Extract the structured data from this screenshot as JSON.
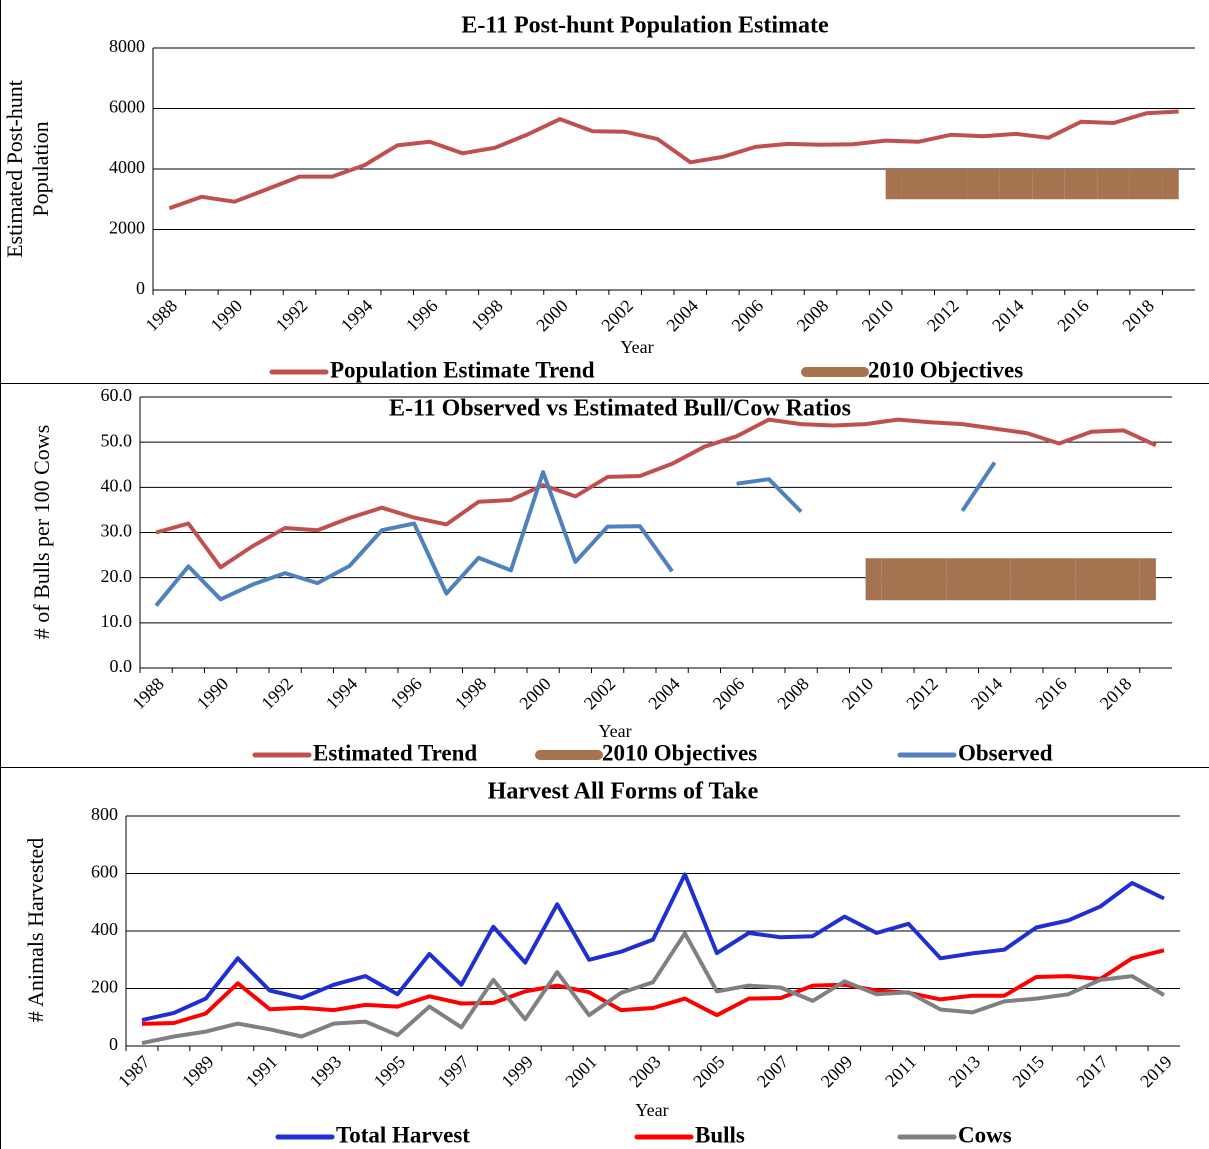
{
  "chart_data": [
    {
      "type": "line",
      "title": "E-11 Post-hunt Population Estimate",
      "xlabel": "Year",
      "ylabel": [
        "Estimated Post-hunt",
        "Population"
      ],
      "categories": [
        "1988",
        null,
        "1990",
        null,
        "1992",
        null,
        "1994",
        null,
        "1996",
        null,
        "1998",
        null,
        "2000",
        null,
        "2002",
        null,
        "2004",
        null,
        "2006",
        null,
        "2008",
        null,
        "2010",
        null,
        "2012",
        null,
        "2014",
        null,
        "2016",
        null,
        "2018",
        null
      ],
      "series": [
        {
          "name": "Population Estimate Trend",
          "color": "#c0504d",
          "values": [
            2700,
            3080,
            2920,
            3330,
            3750,
            3750,
            4130,
            4780,
            4900,
            4520,
            4700,
            5140,
            5650,
            5250,
            5230,
            4990,
            4220,
            4400,
            4730,
            4830,
            4800,
            4820,
            4940,
            4900,
            5130,
            5080,
            5160,
            5030,
            5560,
            5520,
            5840,
            5900
          ]
        },
        {
          "name": "2010 Objectives",
          "type": "band",
          "color": "#a57350",
          "values": [
            null,
            null,
            null,
            null,
            null,
            null,
            null,
            null,
            null,
            null,
            null,
            null,
            null,
            null,
            null,
            null,
            null,
            null,
            null,
            null,
            null,
            null,
            4000,
            4000,
            4000,
            4000,
            4000,
            4000,
            4000,
            4000,
            4000,
            4000
          ],
          "low": [
            null,
            null,
            null,
            null,
            null,
            null,
            null,
            null,
            null,
            null,
            null,
            null,
            null,
            null,
            null,
            null,
            null,
            null,
            null,
            null,
            null,
            null,
            3000,
            3000,
            3000,
            3000,
            3000,
            3000,
            3000,
            3000,
            3000,
            3000
          ]
        }
      ],
      "ylim": [
        0,
        8000
      ],
      "yticks": [
        0,
        2000,
        4000,
        6000,
        8000
      ],
      "grid": true
    },
    {
      "type": "line",
      "title": "E-11 Observed vs Estimated Bull/Cow Ratios",
      "xlabel": "Year",
      "ylabel": [
        "# of Bulls per 100 Cows"
      ],
      "categories": [
        "1988",
        null,
        "1990",
        null,
        "1992",
        null,
        "1994",
        null,
        "1996",
        null,
        "1998",
        null,
        "2000",
        null,
        "2002",
        null,
        "2004",
        null,
        "2006",
        null,
        "2008",
        null,
        "2010",
        null,
        "2012",
        null,
        "2014",
        null,
        "2016",
        null,
        "2018",
        null
      ],
      "series": [
        {
          "name": "Estimated Trend",
          "color": "#c0504d",
          "values": [
            30,
            32,
            22.3,
            27,
            31,
            30.5,
            33.2,
            35.5,
            33.3,
            31.8,
            36.8,
            37.2,
            40.5,
            38,
            42.3,
            42.5,
            45.2,
            49,
            51.3,
            55,
            54,
            53.7,
            54,
            55,
            54.4,
            54,
            53,
            52,
            49.7,
            52.3,
            52.6,
            49.3
          ]
        },
        {
          "name": "2010 Objectives",
          "type": "band",
          "color": "#a57350",
          "values": [
            null,
            null,
            null,
            null,
            null,
            null,
            null,
            null,
            null,
            null,
            null,
            null,
            null,
            null,
            null,
            null,
            null,
            null,
            null,
            null,
            null,
            null,
            24.3,
            24.3,
            24.3,
            24.3,
            24.3,
            24.3,
            24.3,
            24.3,
            24.3,
            24.3
          ],
          "low": [
            null,
            null,
            null,
            null,
            null,
            null,
            null,
            null,
            null,
            null,
            null,
            null,
            null,
            null,
            null,
            null,
            null,
            null,
            null,
            null,
            null,
            null,
            15,
            15,
            15,
            15,
            15,
            15,
            15,
            15,
            15,
            15
          ]
        },
        {
          "name": "Observed",
          "color": "#4f81bd",
          "values": [
            13.8,
            22.5,
            15.2,
            18.5,
            21,
            18.8,
            22.6,
            30.5,
            32,
            16.5,
            24.4,
            21.6,
            43.4,
            23.5,
            31.3,
            31.4,
            21.4,
            null,
            40.8,
            41.8,
            34.6,
            null,
            null,
            null,
            null,
            34.8,
            45.5,
            null,
            null,
            null,
            null,
            null
          ]
        }
      ],
      "ylim": [
        0,
        60
      ],
      "yticks": [
        {
          "value": 0,
          "label": "0.0"
        },
        {
          "value": 10,
          "label": "10.0"
        },
        {
          "value": 20,
          "label": "20.0"
        },
        {
          "value": 30,
          "label": "30.0"
        },
        {
          "value": 40,
          "label": "40.0"
        },
        {
          "value": 50,
          "label": "50.0"
        },
        {
          "value": 60,
          "label": "60.0"
        }
      ],
      "grid": true
    },
    {
      "type": "line",
      "title": "Harvest All Forms of Take",
      "xlabel": "Year",
      "ylabel": [
        "# Animals Harvested"
      ],
      "categories": [
        "1987",
        null,
        "1989",
        null,
        "1991",
        null,
        "1993",
        null,
        "1995",
        null,
        "1997",
        null,
        "1999",
        null,
        "2001",
        null,
        "2003",
        null,
        "2005",
        null,
        "2007",
        null,
        "2009",
        null,
        "2011",
        null,
        "2013",
        null,
        "2015",
        null,
        "2017",
        null,
        "2019"
      ],
      "series": [
        {
          "name": "Total Harvest",
          "color": "#1f2fd0",
          "values": [
            90,
            115,
            165,
            305,
            193,
            167,
            213,
            243,
            180,
            320,
            213,
            415,
            290,
            493,
            300,
            328,
            370,
            597,
            323,
            393,
            378,
            382,
            450,
            393,
            425,
            305,
            322,
            335,
            412,
            437,
            485,
            567,
            513
          ]
        },
        {
          "name": "Bulls",
          "color": "#ff0000",
          "values": [
            77,
            80,
            113,
            218,
            128,
            133,
            125,
            143,
            137,
            173,
            148,
            150,
            190,
            210,
            187,
            125,
            132,
            165,
            107,
            165,
            167,
            210,
            213,
            193,
            185,
            162,
            175,
            175,
            240,
            243,
            233,
            305,
            333
          ]
        },
        {
          "name": "Cows",
          "color": "#808080",
          "values": [
            10,
            33,
            50,
            78,
            58,
            33,
            78,
            85,
            38,
            137,
            65,
            230,
            93,
            257,
            107,
            185,
            222,
            392,
            190,
            210,
            203,
            157,
            225,
            180,
            187,
            127,
            117,
            155,
            165,
            180,
            230,
            243,
            177
          ]
        }
      ],
      "ylim": [
        0,
        800
      ],
      "yticks": [
        0,
        200,
        400,
        600,
        800
      ],
      "grid": true
    }
  ]
}
